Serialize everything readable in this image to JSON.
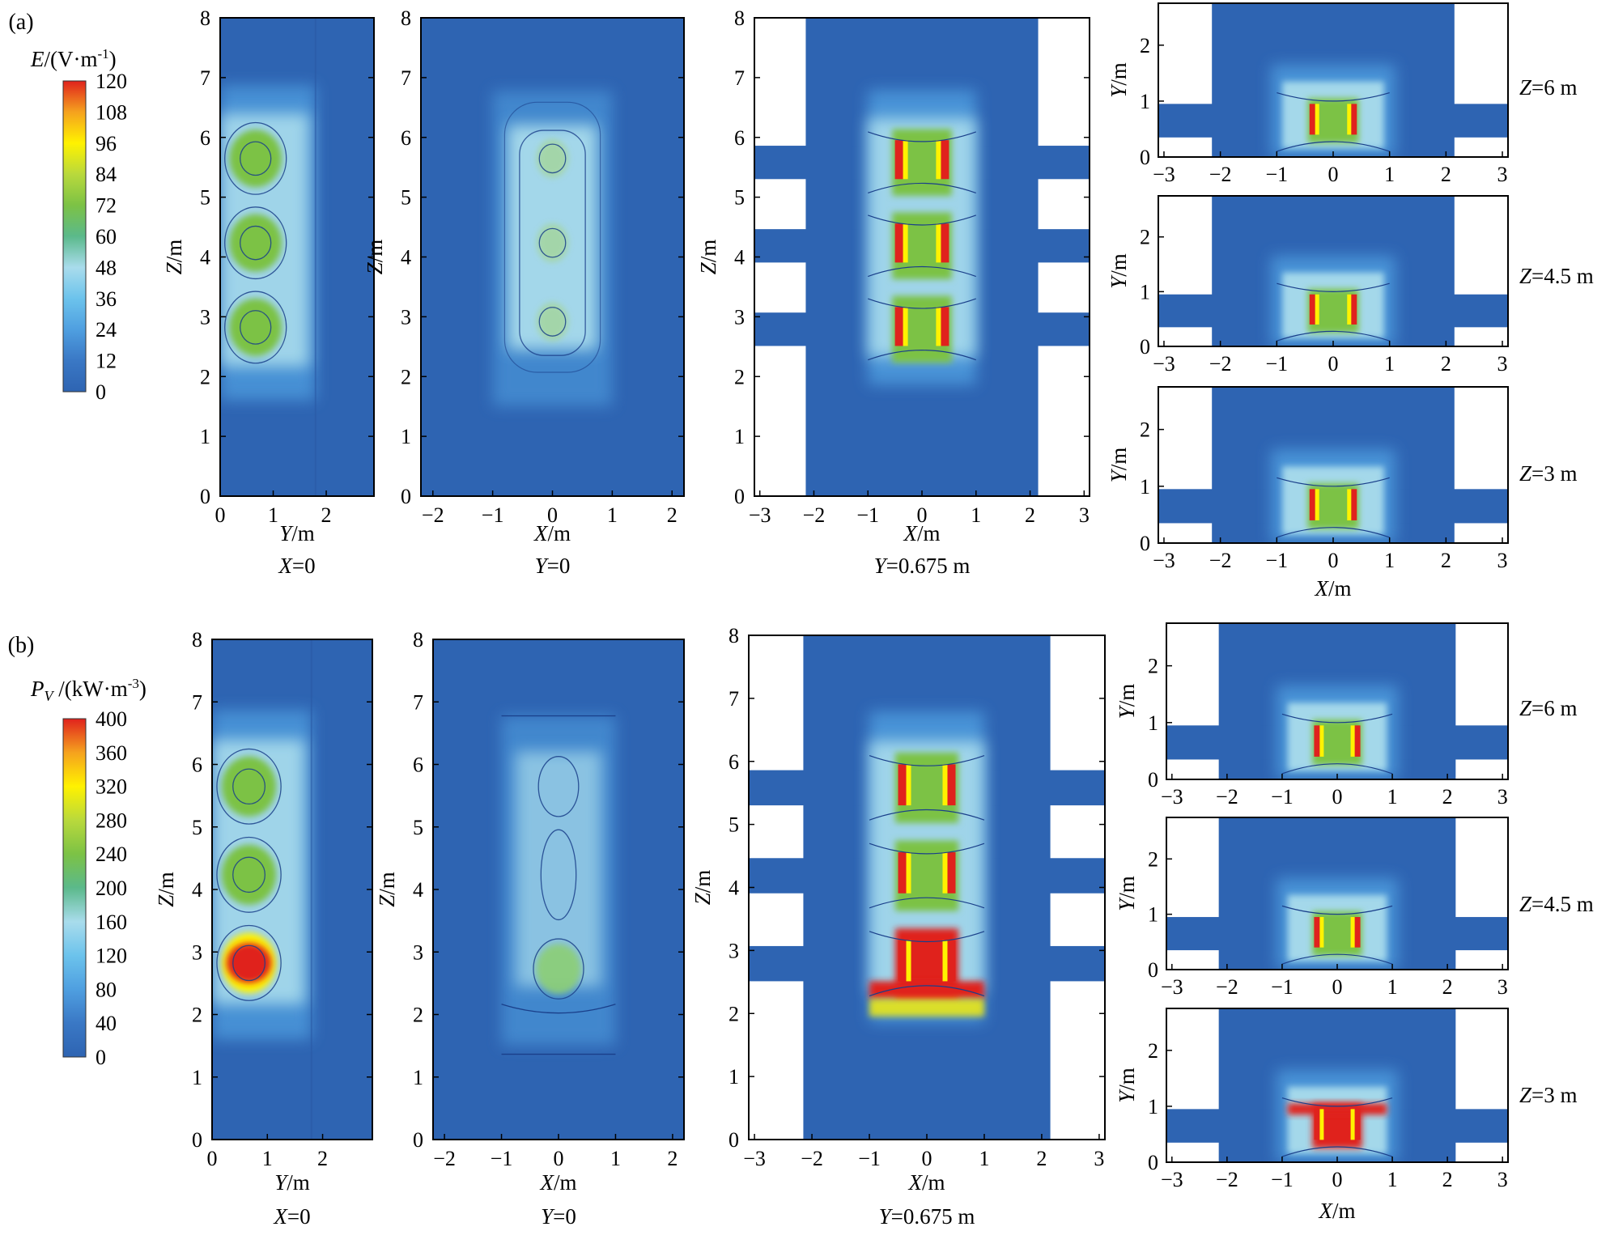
{
  "figure": {
    "colors": {
      "field_bg": "#2e64b2",
      "cool": "#4f9fe0",
      "light": "#a9dcec",
      "green": "#7cc245",
      "yellow": "#fff200",
      "red": "#e0221d",
      "contour": "#1a3f8a",
      "white": "#ffffff"
    },
    "panel_a": {
      "label": "(a)",
      "colorbar": {
        "title_var": "E",
        "title_unit": "/(V·m",
        "title_sup": "-1",
        "title_close": ")",
        "ticks": [
          "120",
          "108",
          "96",
          "84",
          "72",
          "60",
          "48",
          "36",
          "24",
          "12",
          "0"
        ],
        "colors_top_to_bottom": [
          "#e0221d",
          "#f5a21e",
          "#fff200",
          "#b9d93c",
          "#7cc245",
          "#5bb98b",
          "#a9dcec",
          "#6cc3ec",
          "#4f9fe0",
          "#3a78c5",
          "#2e64b2"
        ]
      },
      "plots": {
        "x0": {
          "ylabel": "Z/m",
          "xlabel": "Y/m",
          "section": "X=0",
          "xticks": [
            "0",
            "1",
            "2"
          ],
          "yticks": [
            "0",
            "1",
            "2",
            "3",
            "4",
            "5",
            "6",
            "7",
            "8"
          ]
        },
        "y0": {
          "ylabel": "Z/m",
          "xlabel": "X/m",
          "section": "Y=0",
          "xticks": [
            "−2",
            "−1",
            "0",
            "1",
            "2"
          ],
          "yticks": [
            "0",
            "1",
            "2",
            "3",
            "4",
            "5",
            "6",
            "7",
            "8"
          ]
        },
        "y0675": {
          "ylabel": "Z/m",
          "xlabel": "X/m",
          "section": "Y=0.675 m",
          "xticks": [
            "−3",
            "−2",
            "−1",
            "0",
            "1",
            "2",
            "3"
          ],
          "yticks": [
            "0",
            "1",
            "2",
            "3",
            "4",
            "5",
            "6",
            "7",
            "8"
          ]
        },
        "z_slices": {
          "ylabel": "Y/m",
          "xlabel": "X/m",
          "xticks": [
            "−3",
            "−2",
            "−1",
            "0",
            "1",
            "2",
            "3"
          ],
          "yticks": [
            "0",
            "1",
            "2"
          ],
          "sections": [
            "Z=6 m",
            "Z=4.5 m",
            "Z=3 m"
          ]
        }
      }
    },
    "panel_b": {
      "label": "(b)",
      "colorbar": {
        "title_var": "P",
        "title_sub": "V",
        "title_unit": " /(kW·m",
        "title_sup": "-3",
        "title_close": ")",
        "ticks": [
          "400",
          "360",
          "320",
          "280",
          "240",
          "200",
          "160",
          "120",
          "80",
          "40",
          "0"
        ],
        "colors_top_to_bottom": [
          "#e0221d",
          "#f5a21e",
          "#fff200",
          "#b9d93c",
          "#7cc245",
          "#5bb98b",
          "#a9dcec",
          "#6cc3ec",
          "#4f9fe0",
          "#3a78c5",
          "#2e64b2"
        ]
      },
      "plots": {
        "x0": {
          "ylabel": "Z/m",
          "xlabel": "Y/m",
          "section": "X=0",
          "xticks": [
            "0",
            "1",
            "2"
          ],
          "yticks": [
            "0",
            "1",
            "2",
            "3",
            "4",
            "5",
            "6",
            "7",
            "8"
          ]
        },
        "y0": {
          "ylabel": "Z/m",
          "xlabel": "X/m",
          "section": "Y=0",
          "xticks": [
            "−2",
            "−1",
            "0",
            "1",
            "2"
          ],
          "yticks": [
            "0",
            "1",
            "2",
            "3",
            "4",
            "5",
            "6",
            "7",
            "8"
          ]
        },
        "y0675": {
          "ylabel": "Z/m",
          "xlabel": "X/m",
          "section": "Y=0.675 m",
          "xticks": [
            "−3",
            "−2",
            "−1",
            "0",
            "1",
            "2",
            "3"
          ],
          "yticks": [
            "0",
            "1",
            "2",
            "3",
            "4",
            "5",
            "6",
            "7",
            "8"
          ]
        },
        "z_slices": {
          "ylabel": "Y/m",
          "xlabel": "X/m",
          "xticks": [
            "−3",
            "−2",
            "−1",
            "0",
            "1",
            "2",
            "3"
          ],
          "yticks": [
            "0",
            "1",
            "2"
          ],
          "sections": [
            "Z=6 m",
            "Z=4.5 m",
            "Z=3 m"
          ]
        }
      }
    }
  }
}
